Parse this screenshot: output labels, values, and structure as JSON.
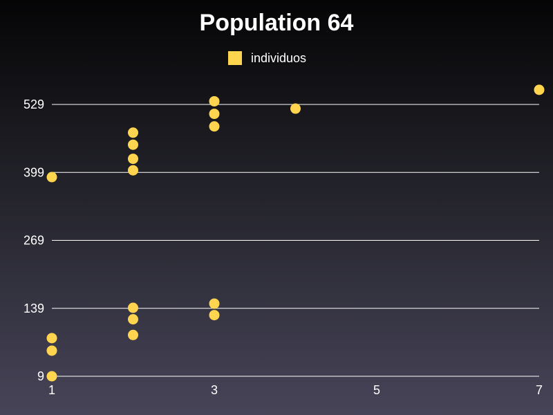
{
  "chart_data": {
    "type": "scatter",
    "title": "Population 64",
    "xlabel": "",
    "ylabel": "",
    "xlim": [
      1,
      7
    ],
    "ylim": [
      9,
      529
    ],
    "x_ticks": [
      "1",
      "3",
      "5",
      "7"
    ],
    "y_ticks": [
      "9",
      "139",
      "269",
      "399",
      "529"
    ],
    "grid": "horizontal",
    "legend_placement": "top-center",
    "series": [
      {
        "name": "individuos",
        "color": "#ffd54f",
        "points": [
          {
            "x": 1,
            "y": 9
          },
          {
            "x": 1,
            "y": 58
          },
          {
            "x": 1,
            "y": 82
          },
          {
            "x": 1,
            "y": 390
          },
          {
            "x": 2,
            "y": 88
          },
          {
            "x": 2,
            "y": 118
          },
          {
            "x": 2,
            "y": 140
          },
          {
            "x": 2,
            "y": 403
          },
          {
            "x": 2,
            "y": 425
          },
          {
            "x": 2,
            "y": 452
          },
          {
            "x": 2,
            "y": 475
          },
          {
            "x": 3,
            "y": 126
          },
          {
            "x": 3,
            "y": 148
          },
          {
            "x": 3,
            "y": 487
          },
          {
            "x": 3,
            "y": 511
          },
          {
            "x": 3,
            "y": 535
          },
          {
            "x": 4,
            "y": 521
          },
          {
            "x": 7,
            "y": 557
          }
        ]
      }
    ]
  }
}
